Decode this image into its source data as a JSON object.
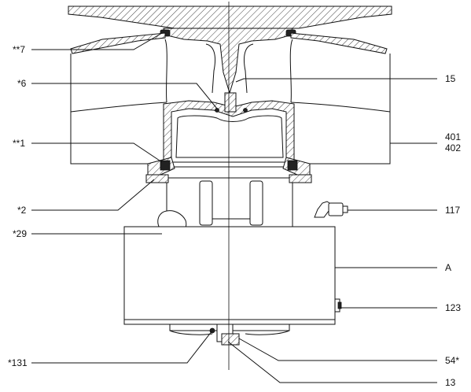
{
  "labels_left": [
    "**7",
    "*6",
    "**1",
    "*2",
    "*29",
    "*131"
  ],
  "labels_right": [
    "15",
    "401",
    "402",
    "117",
    "A",
    "123",
    "54*",
    "13"
  ]
}
